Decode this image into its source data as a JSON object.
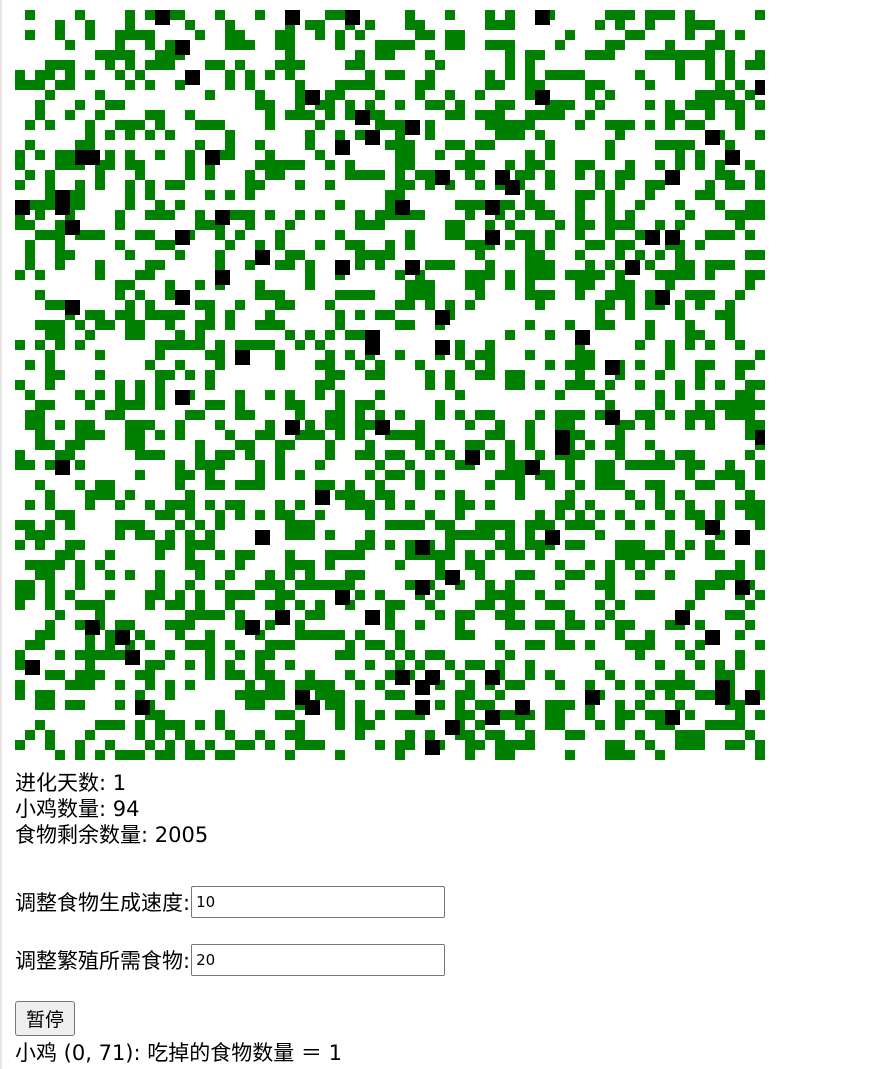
{
  "simulation": {
    "grid_cols": 75,
    "grid_rows": 75,
    "food_color": "#008000",
    "chicken_color": "#000000",
    "empty_color": "#ffffff"
  },
  "stats": {
    "days": "进化天数: 1",
    "chickens": "小鸡数量: 94",
    "food_remaining": "食物剩余数量: 2005"
  },
  "controls": {
    "food_rate_label": "调整食物生成速度:",
    "food_rate_value": "10",
    "breed_food_label": "调整繁殖所需食物:",
    "breed_food_value": "20",
    "pause_label": "暂停"
  },
  "log": {
    "entry": "小鸡 (0, 71): 吃掉的食物数量 ＝ 1"
  }
}
